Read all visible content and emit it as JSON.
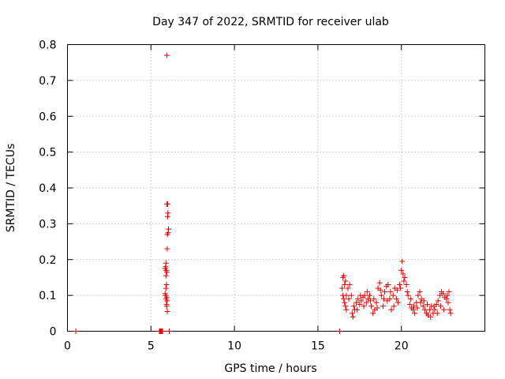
{
  "chart_data": {
    "type": "scatter",
    "title": "Day 347 of 2022, SRMTID for receiver ulab",
    "xlabel": "GPS time / hours",
    "ylabel": "SRMTID / TECUs",
    "xlim": [
      0,
      25
    ],
    "ylim": [
      0,
      0.8
    ],
    "xticks": [
      0,
      5,
      10,
      15,
      20
    ],
    "yticks": [
      0,
      0.1,
      0.2,
      0.3,
      0.4,
      0.5,
      0.6,
      0.7,
      0.8
    ],
    "xtick_labels": [
      "0",
      "5",
      "10",
      "15",
      "20"
    ],
    "ytick_labels": [
      "0",
      "0.1",
      "0.2",
      "0.3",
      "0.4",
      "0.5",
      "0.6",
      "0.7",
      "0.8"
    ],
    "grid": true,
    "marker": "+",
    "color": "#e00000",
    "series": [
      {
        "name": "SRMTID",
        "points": [
          [
            0.5,
            0.0
          ],
          [
            5.5,
            0.0
          ],
          [
            5.55,
            0.0
          ],
          [
            5.6,
            0.0
          ],
          [
            5.65,
            0.0
          ],
          [
            5.7,
            0.0
          ],
          [
            6.1,
            0.0
          ],
          [
            16.3,
            0.0
          ],
          [
            5.95,
            0.77
          ],
          [
            5.96,
            0.355
          ],
          [
            6.0,
            0.355
          ],
          [
            6.0,
            0.32
          ],
          [
            6.02,
            0.33
          ],
          [
            6.05,
            0.285
          ],
          [
            5.98,
            0.27
          ],
          [
            6.03,
            0.275
          ],
          [
            5.97,
            0.23
          ],
          [
            5.9,
            0.19
          ],
          [
            5.88,
            0.18
          ],
          [
            5.85,
            0.175
          ],
          [
            5.92,
            0.17
          ],
          [
            5.95,
            0.165
          ],
          [
            5.9,
            0.155
          ],
          [
            5.93,
            0.13
          ],
          [
            5.9,
            0.12
          ],
          [
            5.85,
            0.105
          ],
          [
            5.88,
            0.1
          ],
          [
            5.95,
            0.095
          ],
          [
            5.9,
            0.09
          ],
          [
            5.97,
            0.085
          ],
          [
            5.93,
            0.075
          ],
          [
            5.95,
            0.07
          ],
          [
            5.98,
            0.055
          ],
          [
            16.5,
            0.15
          ],
          [
            16.55,
            0.155
          ],
          [
            16.6,
            0.13
          ],
          [
            16.65,
            0.14
          ],
          [
            16.45,
            0.12
          ],
          [
            16.5,
            0.1
          ],
          [
            16.55,
            0.09
          ],
          [
            16.6,
            0.08
          ],
          [
            16.65,
            0.07
          ],
          [
            16.7,
            0.06
          ],
          [
            16.8,
            0.12
          ],
          [
            16.9,
            0.13
          ],
          [
            17.0,
            0.1
          ],
          [
            17.05,
            0.05
          ],
          [
            17.1,
            0.04
          ],
          [
            17.2,
            0.06
          ],
          [
            17.3,
            0.08
          ],
          [
            17.4,
            0.09
          ],
          [
            17.5,
            0.075
          ],
          [
            17.6,
            0.085
          ],
          [
            17.7,
            0.095
          ],
          [
            17.8,
            0.1
          ],
          [
            17.9,
            0.08
          ],
          [
            18.0,
            0.09
          ],
          [
            18.1,
            0.1
          ],
          [
            18.2,
            0.07
          ],
          [
            18.3,
            0.05
          ],
          [
            18.4,
            0.06
          ],
          [
            18.5,
            0.08
          ],
          [
            18.6,
            0.12
          ],
          [
            18.7,
            0.135
          ],
          [
            18.8,
            0.1
          ],
          [
            18.9,
            0.07
          ],
          [
            19.0,
            0.11
          ],
          [
            19.1,
            0.125
          ],
          [
            19.2,
            0.13
          ],
          [
            19.3,
            0.09
          ],
          [
            19.4,
            0.06
          ],
          [
            19.5,
            0.1
          ],
          [
            19.6,
            0.12
          ],
          [
            19.7,
            0.09
          ],
          [
            19.8,
            0.08
          ],
          [
            19.9,
            0.13
          ],
          [
            20.0,
            0.17
          ],
          [
            20.05,
            0.195
          ],
          [
            20.1,
            0.16
          ],
          [
            20.2,
            0.15
          ],
          [
            20.3,
            0.13
          ],
          [
            20.4,
            0.1
          ],
          [
            20.5,
            0.075
          ],
          [
            20.6,
            0.065
          ],
          [
            20.7,
            0.06
          ],
          [
            20.8,
            0.05
          ],
          [
            20.9,
            0.08
          ],
          [
            21.0,
            0.1
          ],
          [
            21.1,
            0.11
          ],
          [
            21.2,
            0.09
          ],
          [
            21.3,
            0.07
          ],
          [
            21.4,
            0.06
          ],
          [
            21.5,
            0.05
          ],
          [
            21.6,
            0.045
          ],
          [
            21.7,
            0.06
          ],
          [
            21.8,
            0.07
          ],
          [
            21.9,
            0.05
          ],
          [
            22.0,
            0.06
          ],
          [
            22.1,
            0.075
          ],
          [
            22.2,
            0.085
          ],
          [
            22.3,
            0.1
          ],
          [
            22.4,
            0.11
          ],
          [
            22.5,
            0.105
          ],
          [
            22.6,
            0.095
          ],
          [
            22.7,
            0.09
          ],
          [
            22.8,
            0.08
          ],
          [
            22.9,
            0.06
          ],
          [
            22.95,
            0.05
          ],
          [
            16.7,
            0.1
          ],
          [
            16.85,
            0.09
          ],
          [
            17.15,
            0.07
          ],
          [
            17.35,
            0.06
          ],
          [
            17.55,
            0.1
          ],
          [
            17.75,
            0.07
          ],
          [
            17.95,
            0.11
          ],
          [
            18.15,
            0.085
          ],
          [
            18.35,
            0.09
          ],
          [
            18.55,
            0.065
          ],
          [
            18.75,
            0.115
          ],
          [
            18.95,
            0.09
          ],
          [
            19.15,
            0.085
          ],
          [
            19.35,
            0.11
          ],
          [
            19.55,
            0.07
          ],
          [
            19.75,
            0.115
          ],
          [
            19.95,
            0.12
          ],
          [
            20.15,
            0.14
          ],
          [
            20.35,
            0.11
          ],
          [
            20.55,
            0.09
          ],
          [
            20.75,
            0.07
          ],
          [
            20.95,
            0.065
          ],
          [
            21.15,
            0.08
          ],
          [
            21.35,
            0.085
          ],
          [
            21.55,
            0.075
          ],
          [
            21.75,
            0.04
          ],
          [
            21.95,
            0.07
          ],
          [
            22.15,
            0.05
          ],
          [
            22.35,
            0.07
          ],
          [
            22.55,
            0.06
          ],
          [
            22.75,
            0.1
          ],
          [
            22.85,
            0.11
          ]
        ]
      }
    ]
  }
}
